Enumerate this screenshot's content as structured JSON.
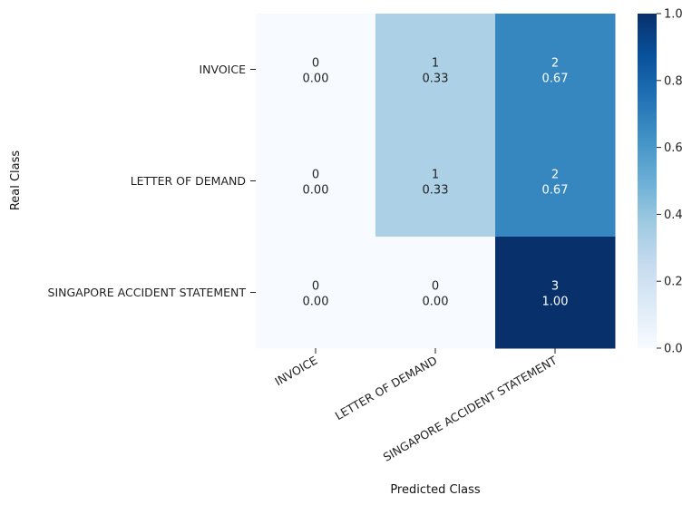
{
  "chart_data": {
    "type": "heatmap",
    "title": "",
    "xlabel": "Predicted Class",
    "ylabel": "Real Class",
    "x_categories": [
      "INVOICE",
      "LETTER OF DEMAND",
      "SINGAPORE ACCIDENT STATEMENT"
    ],
    "y_categories": [
      "INVOICE",
      "LETTER OF DEMAND",
      "SINGAPORE ACCIDENT STATEMENT"
    ],
    "counts": [
      [
        0,
        1,
        2
      ],
      [
        0,
        1,
        2
      ],
      [
        0,
        0,
        3
      ]
    ],
    "normalized": [
      [
        0.0,
        0.33,
        0.67
      ],
      [
        0.0,
        0.33,
        0.67
      ],
      [
        0.0,
        0.0,
        1.0
      ]
    ],
    "normalized_labels": [
      [
        "0.00",
        "0.33",
        "0.67"
      ],
      [
        "0.00",
        "0.33",
        "0.67"
      ],
      [
        "0.00",
        "0.00",
        "1.00"
      ]
    ],
    "colormap": "Blues",
    "colorbar": {
      "range": [
        0,
        1
      ],
      "ticks": [
        0.0,
        0.2,
        0.4,
        0.6,
        0.8,
        1.0
      ],
      "tick_labels": [
        "0.0",
        "0.2",
        "0.4",
        "0.6",
        "0.8",
        "1.0"
      ]
    },
    "x_tick_rotation": "30 degrees, right-aligned"
  }
}
